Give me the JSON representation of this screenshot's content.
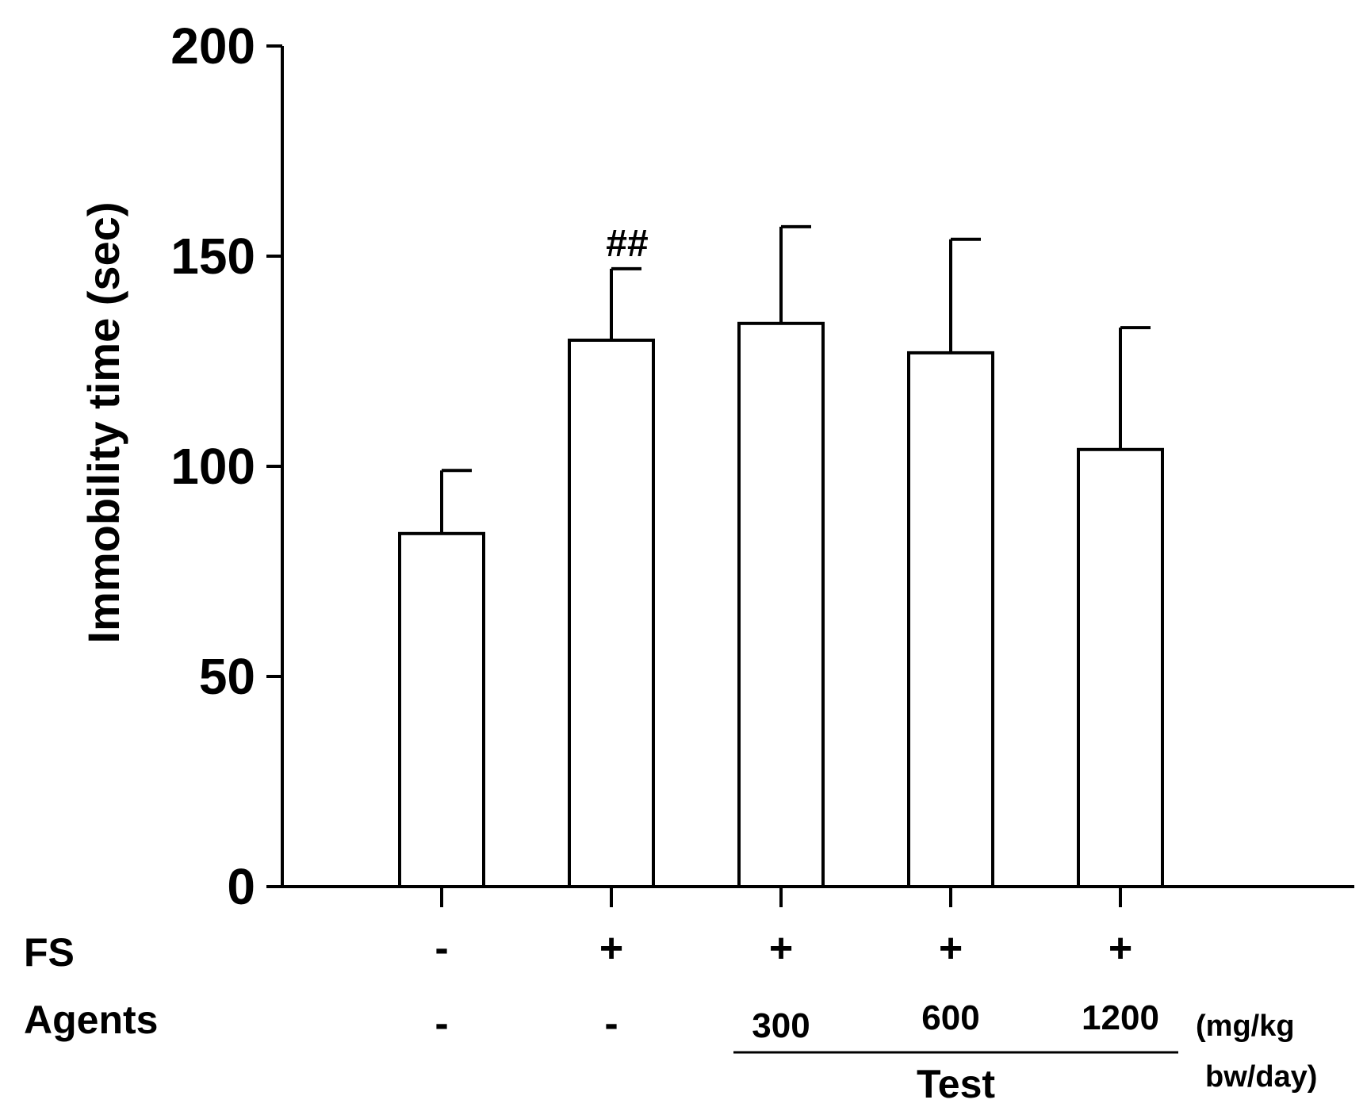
{
  "chart_data": {
    "type": "bar",
    "ylabel": "Immobility time (sec)",
    "ylim": [
      0,
      200
    ],
    "yticks": [
      0,
      50,
      100,
      150,
      200
    ],
    "grid": false,
    "bar_fill": "#ffffff",
    "stroke": "#000000",
    "bars": [
      {
        "fs": "-",
        "agent": "-",
        "value": 84,
        "error": 15,
        "annotation": ""
      },
      {
        "fs": "+",
        "agent": "-",
        "value": 130,
        "error": 17,
        "annotation": "##"
      },
      {
        "fs": "+",
        "agent": "300",
        "value": 134,
        "error": 23,
        "annotation": ""
      },
      {
        "fs": "+",
        "agent": "600",
        "value": 127,
        "error": 27,
        "annotation": ""
      },
      {
        "fs": "+",
        "agent": "1200",
        "value": 104,
        "error": 29,
        "annotation": ""
      }
    ],
    "row_labels": {
      "fs": "FS",
      "agents": "Agents"
    },
    "group_label": "Test",
    "unit_label": [
      "(mg/kg",
      "bw/day)"
    ]
  }
}
